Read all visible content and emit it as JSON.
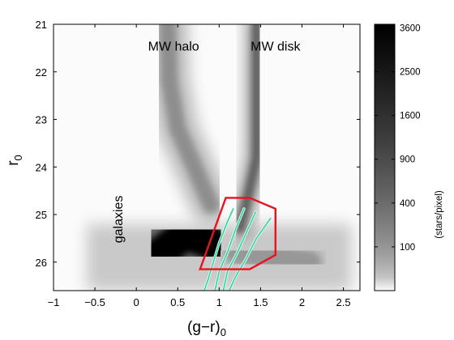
{
  "chart_data": {
    "type": "heatmap",
    "title": "",
    "xlabel": "(g−r)",
    "xlabel_sub": "0",
    "ylabel": "r",
    "ylabel_sub": "0",
    "xlim": [
      -1.0,
      2.7
    ],
    "ylim": [
      26.6,
      21.0
    ],
    "y_inverted": true,
    "xticks": [
      -1,
      -0.5,
      0,
      0.5,
      1,
      1.5,
      2,
      2.5
    ],
    "xtick_labels": [
      "−1",
      "−0.5",
      "0",
      "0.5",
      "1",
      "1.5",
      "2",
      "2.5"
    ],
    "yticks": [
      21,
      22,
      23,
      24,
      25,
      26
    ],
    "ytick_labels": [
      "21",
      "22",
      "23",
      "24",
      "25",
      "26"
    ],
    "grid": false,
    "colormap": "gray_reversed",
    "colorbar": {
      "label": "(stars/pixel)",
      "range": [
        0,
        3700
      ],
      "ticks": [
        100,
        400,
        900,
        1600,
        2500,
        3600
      ],
      "tick_labels": [
        "100",
        "400",
        "900",
        "1600",
        "2500",
        "3600"
      ],
      "scale": "sqrt"
    },
    "annotations": [
      {
        "text": "MW halo",
        "x": 0.45,
        "y": 21.55
      },
      {
        "text": "MW disk",
        "x": 1.68,
        "y": 21.55
      },
      {
        "text": "galaxies",
        "x": -0.17,
        "y": 25.1,
        "rotation": -90
      }
    ],
    "density_features": [
      {
        "name": "MW halo plume",
        "path": [
          [
            0.38,
            21.0
          ],
          [
            0.4,
            22.2
          ],
          [
            0.5,
            23.2
          ],
          [
            0.7,
            24.0
          ],
          [
            0.9,
            24.8
          ]
        ],
        "width": 0.22,
        "peak": 700
      },
      {
        "name": "MW disk sequence",
        "path": [
          [
            1.45,
            21.0
          ],
          [
            1.45,
            22.5
          ],
          [
            1.45,
            23.8
          ],
          [
            1.35,
            24.6
          ],
          [
            1.25,
            25.3
          ]
        ],
        "width": 0.12,
        "peak": 1500
      },
      {
        "name": "galaxy cloud",
        "path": [
          [
            0.3,
            25.8
          ],
          [
            0.6,
            25.4
          ],
          [
            0.9,
            25.6
          ]
        ],
        "width": 0.45,
        "peak": 3600
      },
      {
        "name": "red tail",
        "path": [
          [
            1.2,
            25.8
          ],
          [
            1.7,
            25.9
          ],
          [
            2.1,
            26.0
          ]
        ],
        "width": 0.3,
        "peak": 600
      }
    ],
    "selection_polygon": {
      "color": "#e8131c",
      "points": [
        [
          1.08,
          24.65
        ],
        [
          1.37,
          24.65
        ],
        [
          1.68,
          24.88
        ],
        [
          1.68,
          25.85
        ],
        [
          1.37,
          26.15
        ],
        [
          0.77,
          26.15
        ]
      ]
    },
    "isochrones": {
      "color": "#2fd3a0",
      "outline": "#e9fbf2",
      "lines": [
        [
          [
            1.17,
            24.88
          ],
          [
            1.1,
            25.15
          ],
          [
            1.0,
            25.6
          ],
          [
            0.93,
            26.0
          ],
          [
            0.86,
            26.4
          ],
          [
            0.82,
            26.6
          ]
        ],
        [
          [
            1.3,
            24.88
          ],
          [
            1.2,
            25.3
          ],
          [
            1.1,
            25.8
          ],
          [
            1.0,
            26.2
          ],
          [
            0.95,
            26.6
          ]
        ],
        [
          [
            1.44,
            24.95
          ],
          [
            1.35,
            25.3
          ],
          [
            1.22,
            25.8
          ],
          [
            1.1,
            26.2
          ],
          [
            1.05,
            26.6
          ]
        ],
        [
          [
            1.62,
            25.08
          ],
          [
            1.45,
            25.5
          ],
          [
            1.32,
            25.95
          ],
          [
            1.2,
            26.3
          ],
          [
            1.12,
            26.6
          ]
        ]
      ]
    }
  }
}
